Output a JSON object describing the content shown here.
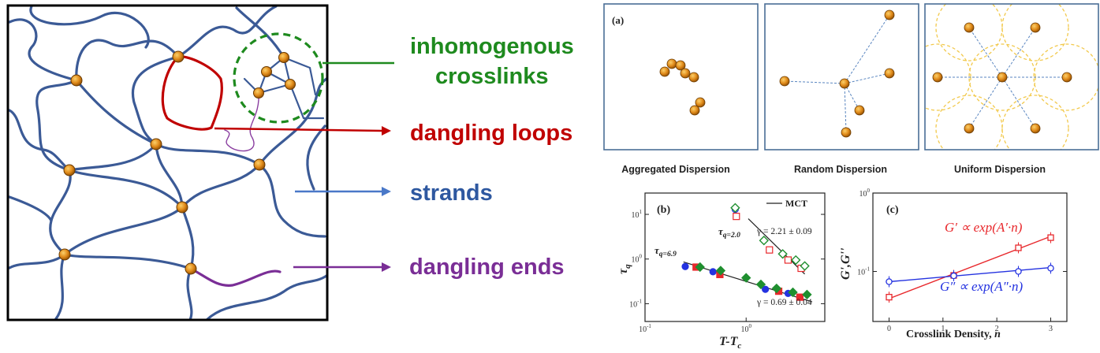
{
  "colors": {
    "strand": "#3b5a96",
    "loop": "#c00000",
    "dangling_end": "#7a2e96",
    "crosslink_fill": "#e08a1a",
    "inhomogeneous": "#1e8a1e",
    "red_series": "#e8282c",
    "blue_series": "#2432e0",
    "green_series": "#1f8f2f",
    "panel_border": "#4a6e96",
    "dashed_link": "#5a86c0",
    "circle": "#f2c94c"
  },
  "network_labels": {
    "inhomogeneous_line1": "inhomogenous",
    "inhomogeneous_line2": "crosslinks",
    "dangling_loops": "dangling loops",
    "strands": "strands",
    "dangling_ends": "dangling ends"
  },
  "dispersion_panels": {
    "panel_label": "(a)",
    "aggregated": "Aggregated Dispersion",
    "random": "Random Dispersion",
    "uniform": "Uniform Dispersion"
  },
  "chart_data": [
    {
      "type": "scatter",
      "panel_label": "(b)",
      "xlabel": "T-T",
      "xlabel_sub": "c",
      "ylabel": "τ",
      "ylabel_sub": "q",
      "x_scale": "log",
      "y_scale": "log",
      "xlim": [
        0.1,
        6
      ],
      "ylim": [
        0.04,
        30
      ],
      "x_ticks": [
        {
          "value": 0.1,
          "base": "10",
          "exp": "-1"
        },
        {
          "value": 1,
          "base": "10",
          "exp": "0"
        }
      ],
      "y_ticks": [
        {
          "value": 0.1,
          "base": "10",
          "exp": "-1"
        },
        {
          "value": 1,
          "base": "10",
          "exp": "0"
        },
        {
          "value": 10,
          "base": "10",
          "exp": "1"
        }
      ],
      "legend": "MCT",
      "annotations": {
        "tau_low_main": "τ",
        "tau_low_sub": "q=6.9",
        "tau_high_main": "τ",
        "tau_high_sub": "q=2.0",
        "gamma_high": "γ = 2.21 ± 0.09",
        "gamma_low": "γ = 0.69 ± 0.04"
      },
      "fits": [
        {
          "name": "q=6.9",
          "exponent": 0.69,
          "x": [
            0.24,
            4.5
          ],
          "y": [
            0.86,
            0.11
          ]
        },
        {
          "name": "q=2.0",
          "exponent": 2.21,
          "x": [
            1.05,
            3.8
          ],
          "y": [
            8.0,
            0.46
          ]
        }
      ],
      "series": [
        {
          "name": "blue circle",
          "marker": "circle",
          "filled": true,
          "color": "blue",
          "q69": {
            "x": [
              0.25,
              0.47,
              1.55,
              2.6
            ],
            "y": [
              0.68,
              0.52,
              0.21,
              0.17
            ]
          },
          "q20": {
            "x": [
              0.78
            ],
            "y": [
              13
            ]
          }
        },
        {
          "name": "red square",
          "marker": "square",
          "filled": true,
          "color": "red",
          "q69": {
            "x": [
              0.32,
              0.55,
              2.1,
              3.4
            ],
            "y": [
              0.66,
              0.45,
              0.19,
              0.14
            ]
          },
          "q20": {
            "x": [
              0.8,
              1.7,
              2.6,
              3.5
            ],
            "y": [
              9,
              1.6,
              0.95,
              0.62
            ]
          }
        },
        {
          "name": "green diamond",
          "marker": "diamond",
          "filled": true,
          "color": "green",
          "q69": {
            "x": [
              0.35,
              0.56,
              1.0,
              1.4,
              2.0,
              2.9,
              4.0
            ],
            "y": [
              0.66,
              0.55,
              0.38,
              0.27,
              0.22,
              0.18,
              0.16
            ]
          },
          "q20": {
            "x": [
              0.78,
              1.5,
              2.3,
              3.1,
              3.8
            ],
            "y": [
              14,
              2.6,
              1.3,
              0.95,
              0.7
            ]
          }
        }
      ]
    },
    {
      "type": "scatter",
      "panel_label": "(c)",
      "xlabel": "Crosslink Density, ",
      "xlabel_italic": "n",
      "ylabel": "G',G''",
      "x_scale": "linear",
      "y_scale": "log",
      "xlim": [
        -0.3,
        3.3
      ],
      "ylim": [
        0.023,
        1.0
      ],
      "x_ticks": [
        0,
        1,
        2,
        3
      ],
      "y_ticks": [
        {
          "value": 1.0,
          "base": "10",
          "exp": "0"
        },
        {
          "value": 0.1,
          "base": "10",
          "exp": "-1"
        }
      ],
      "legend_red": "G′ ∝ exp(A′·n)",
      "legend_blue": "G″ ∝ exp(A″·n)",
      "series": [
        {
          "name": "G'",
          "color": "red",
          "marker": "open-square",
          "x": [
            0,
            1.2,
            2.4,
            3.0
          ],
          "y": [
            0.047,
            0.089,
            0.2,
            0.27
          ],
          "fit": {
            "x": [
              0,
              3.0
            ],
            "y": [
              0.045,
              0.28
            ]
          }
        },
        {
          "name": "G''",
          "color": "blue",
          "marker": "open-circle",
          "x": [
            0,
            1.2,
            2.4,
            3.0
          ],
          "y": [
            0.074,
            0.088,
            0.1,
            0.11
          ],
          "fit": {
            "x": [
              0,
              3.0
            ],
            "y": [
              0.074,
              0.112
            ]
          }
        }
      ]
    }
  ]
}
